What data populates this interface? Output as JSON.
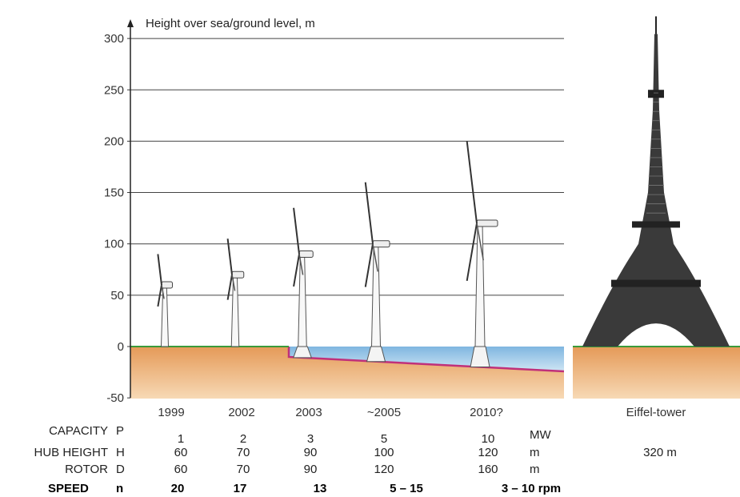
{
  "chart_data": {
    "type": "bar",
    "title": "",
    "ylabel": "Height over sea/ground level, m",
    "ylim": [
      -50,
      300
    ],
    "yticks": [
      300,
      250,
      200,
      150,
      100,
      50,
      0,
      -50
    ],
    "grid": true,
    "categories": [
      "1999",
      "2002",
      "2003",
      "~2005",
      "2010?"
    ],
    "turbines": [
      {
        "year": "1999",
        "hub_height": 60,
        "rotor": 60,
        "offshore": false
      },
      {
        "year": "2002",
        "hub_height": 70,
        "rotor": 70,
        "offshore": false
      },
      {
        "year": "2003",
        "hub_height": 90,
        "rotor": 90,
        "offshore": true
      },
      {
        "year": "~2005",
        "hub_height": 100,
        "rotor": 120,
        "offshore": true
      },
      {
        "year": "2010?",
        "hub_height": 120,
        "rotor": 160,
        "offshore": true
      }
    ],
    "tower": {
      "label": "Eiffel-tower",
      "height_text": "320 m",
      "height": 320
    }
  },
  "table": {
    "rows": [
      {
        "label": "CAPACITY",
        "sym": "P",
        "values": [
          "1",
          "2",
          "3",
          "5",
          "10"
        ],
        "unit": "MW",
        "extra": ""
      },
      {
        "label": "HUB HEIGHT",
        "sym": "H",
        "values": [
          "60",
          "70",
          "90",
          "100",
          "120"
        ],
        "unit": "m",
        "extra": "320 m"
      },
      {
        "label": "ROTOR",
        "sym": "D",
        "values": [
          "60",
          "70",
          "90",
          "120",
          "160"
        ],
        "unit": "m",
        "extra": ""
      }
    ],
    "speed": {
      "label": "SPEED",
      "sym": "n",
      "values": [
        "20",
        "17",
        "13",
        "5 – 15",
        "3 – 10 rpm"
      ]
    }
  },
  "colors": {
    "ground": "#e8a56c",
    "ground_light": "#f3c89a",
    "sea": "#9fc9e8",
    "seabed_line": "#c0307a",
    "grass": "#3a9a3a",
    "tower": "#3a3a3a"
  }
}
